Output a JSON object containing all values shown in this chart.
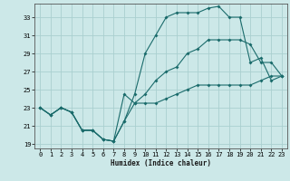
{
  "xlabel": "Humidex (Indice chaleur)",
  "bg_color": "#cce8e8",
  "grid_color": "#aacfcf",
  "line_color": "#1a6b6b",
  "xlim": [
    -0.5,
    23.5
  ],
  "ylim": [
    18.5,
    34.5
  ],
  "xticks": [
    0,
    1,
    2,
    3,
    4,
    5,
    6,
    7,
    8,
    9,
    10,
    11,
    12,
    13,
    14,
    15,
    16,
    17,
    18,
    19,
    20,
    21,
    22,
    23
  ],
  "yticks": [
    19,
    21,
    23,
    25,
    27,
    29,
    31,
    33
  ],
  "line1_x": [
    0,
    1,
    2,
    3,
    4,
    5,
    6,
    7,
    8,
    9,
    10,
    11,
    12,
    13,
    14,
    15,
    16,
    17,
    18,
    19,
    20,
    21,
    22,
    23
  ],
  "line1_y": [
    23.0,
    22.2,
    23.0,
    22.5,
    20.5,
    20.5,
    19.5,
    19.3,
    21.5,
    24.5,
    29.0,
    31.0,
    33.0,
    33.5,
    33.5,
    33.5,
    34.0,
    34.2,
    33.0,
    33.0,
    28.0,
    28.5,
    26.0,
    26.5
  ],
  "line2_x": [
    0,
    1,
    2,
    3,
    4,
    5,
    6,
    7,
    8,
    9,
    10,
    11,
    12,
    13,
    14,
    15,
    16,
    17,
    18,
    19,
    20,
    21,
    22,
    23
  ],
  "line2_y": [
    23.0,
    22.2,
    23.0,
    22.5,
    20.5,
    20.5,
    19.5,
    19.3,
    21.5,
    23.5,
    23.5,
    23.5,
    24.0,
    24.5,
    25.0,
    25.5,
    25.5,
    25.5,
    25.5,
    25.5,
    25.5,
    26.0,
    26.5,
    26.5
  ],
  "line3_x": [
    0,
    1,
    2,
    3,
    4,
    5,
    6,
    7,
    8,
    9,
    10,
    11,
    12,
    13,
    14,
    15,
    16,
    17,
    18,
    19,
    20,
    21,
    22,
    23
  ],
  "line3_y": [
    23.0,
    22.2,
    23.0,
    22.5,
    20.5,
    20.5,
    19.5,
    19.3,
    24.5,
    23.5,
    24.5,
    26.0,
    27.0,
    27.5,
    29.0,
    29.5,
    30.5,
    30.5,
    30.5,
    30.5,
    30.0,
    28.0,
    28.0,
    26.5
  ]
}
